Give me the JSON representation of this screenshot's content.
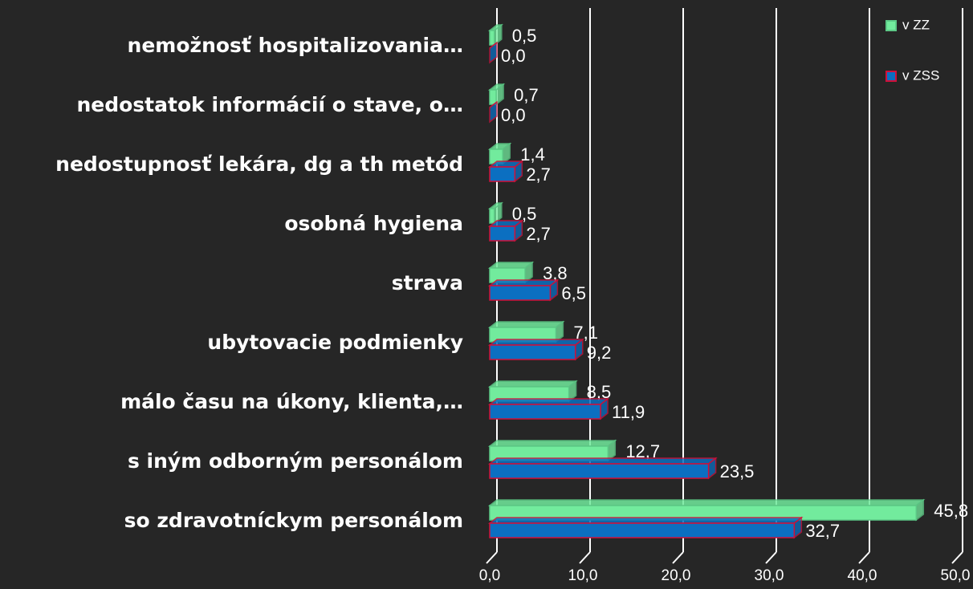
{
  "chart_data": {
    "type": "barh3d",
    "categories": [
      "nemožnosť hospitalizovania…",
      "nedostatok informácií o stave, o…",
      "nedostupnosť lekára, dg a th metód",
      "osobná hygiena",
      "strava",
      "ubytovacie podmienky",
      "málo času na úkony, klienta,…",
      "s iným odborným personálom",
      "so zdravotníckym personálom"
    ],
    "series": [
      {
        "name": "v ZZ",
        "color": "#72eb9d",
        "edgecolor": "#5cc986",
        "values": [
          0.5,
          0.7,
          1.4,
          0.5,
          3.8,
          7.1,
          8.5,
          12.7,
          45.8
        ],
        "value_labels": [
          "0,5",
          "0,7",
          "1,4",
          "0,5",
          "3,8",
          "7,1",
          "8,5",
          "12,7",
          "45,8"
        ]
      },
      {
        "name": "v ZSS",
        "color": "#0b6fc1",
        "edgecolor": "#d0103a",
        "values": [
          0.0,
          0.0,
          2.7,
          2.7,
          6.5,
          9.2,
          11.9,
          23.5,
          32.7
        ],
        "value_labels": [
          "0,0",
          "0,0",
          "2,7",
          "2,7",
          "6,5",
          "9,2",
          "11,9",
          "23,5",
          "32,7"
        ]
      }
    ],
    "xlim": [
      0,
      50
    ],
    "xticks": [
      {
        "value": 0,
        "label": "0,0"
      },
      {
        "value": 10,
        "label": "10,0"
      },
      {
        "value": 20,
        "label": "20,0"
      },
      {
        "value": 30,
        "label": "30,0"
      },
      {
        "value": 40,
        "label": "40,0"
      },
      {
        "value": 50,
        "label": "50,0"
      }
    ],
    "grid": true,
    "legend": "upper right"
  }
}
